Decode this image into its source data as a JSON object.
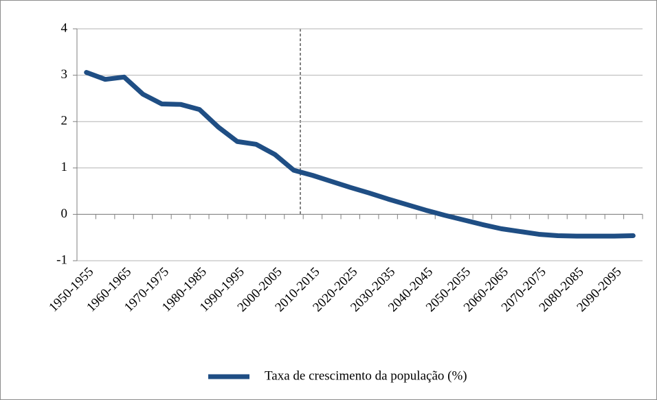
{
  "chart_data": {
    "type": "line",
    "categories": [
      "1950-1955",
      null,
      "1960-1965",
      null,
      "1970-1975",
      null,
      "1980-1985",
      null,
      "1990-1995",
      null,
      "2000-2005",
      null,
      "2010-2015",
      null,
      "2020-2025",
      null,
      "2030-2035",
      null,
      "2040-2045",
      null,
      "2050-2055",
      null,
      "2060-2065",
      null,
      "2070-2075",
      null,
      "2080-2085",
      null,
      "2090-2095",
      null
    ],
    "series": [
      {
        "name": "Taxa de crescimento da população (%)",
        "color": "#1f4e84",
        "values": [
          3.06,
          2.91,
          2.96,
          2.59,
          2.38,
          2.37,
          2.26,
          1.88,
          1.57,
          1.51,
          1.29,
          0.95,
          0.84,
          0.71,
          0.58,
          0.46,
          0.33,
          0.21,
          0.09,
          -0.02,
          -0.12,
          -0.22,
          -0.31,
          -0.37,
          -0.43,
          -0.46,
          -0.47,
          -0.47,
          -0.47,
          -0.46
        ]
      }
    ],
    "ylim": [
      -1,
      4
    ],
    "yticks": [
      -1,
      0,
      1,
      2,
      3,
      4
    ],
    "grid": true,
    "legend": "bottom"
  }
}
